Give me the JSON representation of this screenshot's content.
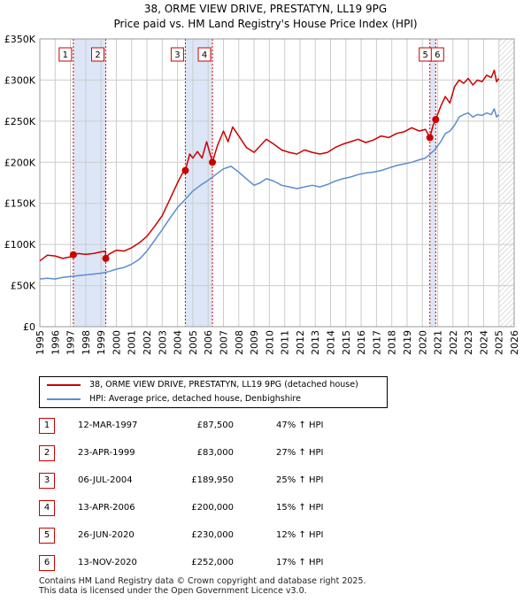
{
  "title_line1": "38, ORME VIEW DRIVE, PRESTATYN, LL19 9PG",
  "title_line2": "Price paid vs. HM Land Registry's House Price Index (HPI)",
  "colors": {
    "property": "#cc0000",
    "hpi": "#5b8ecc",
    "shade": "#dce6f7",
    "marker": "#cc0000",
    "grid": "#cccccc"
  },
  "legend": {
    "property_label": "38, ORME VIEW DRIVE, PRESTATYN, LL19 9PG (detached house)",
    "hpi_label": "HPI: Average price, detached house, Denbighshire"
  },
  "sales": [
    {
      "num": "1",
      "date": "12-MAR-1997",
      "price": "£87,500",
      "hpi": "47% ↑ HPI"
    },
    {
      "num": "2",
      "date": "23-APR-1999",
      "price": "£83,000",
      "hpi": "27% ↑ HPI"
    },
    {
      "num": "3",
      "date": "06-JUL-2004",
      "price": "£189,950",
      "hpi": "25% ↑ HPI"
    },
    {
      "num": "4",
      "date": "13-APR-2006",
      "price": "£200,000",
      "hpi": "15% ↑ HPI"
    },
    {
      "num": "5",
      "date": "26-JUN-2020",
      "price": "£230,000",
      "hpi": "12% ↑ HPI"
    },
    {
      "num": "6",
      "date": "13-NOV-2020",
      "price": "£252,000",
      "hpi": "17% ↑ HPI"
    }
  ],
  "footer_line1": "Contains HM Land Registry data © Crown copyright and database right 2025.",
  "footer_line2": "This data is licensed under the Open Government Licence v3.0.",
  "chart_data": {
    "type": "line",
    "title": "38, ORME VIEW DRIVE, PRESTATYN, LL19 9PG — Price paid vs. HM Land Registry's House Price Index (HPI)",
    "xlabel": "",
    "ylabel": "",
    "xlim": [
      1995,
      2026
    ],
    "ylim": [
      0,
      350000
    ],
    "y_ticks": [
      0,
      50000,
      100000,
      150000,
      200000,
      250000,
      300000,
      350000
    ],
    "y_tick_labels": [
      "£0",
      "£50K",
      "£100K",
      "£150K",
      "£200K",
      "£250K",
      "£300K",
      "£350K"
    ],
    "x_ticks": [
      1995,
      1996,
      1997,
      1998,
      1999,
      2000,
      2001,
      2002,
      2003,
      2004,
      2005,
      2006,
      2007,
      2008,
      2009,
      2010,
      2011,
      2012,
      2013,
      2014,
      2015,
      2016,
      2017,
      2018,
      2019,
      2020,
      2021,
      2022,
      2023,
      2024,
      2025,
      2026
    ],
    "x_tick_labels": [
      "1995",
      "1996",
      "1997",
      "1998",
      "1999",
      "2000",
      "2001",
      "2002",
      "2003",
      "2004",
      "2005",
      "2006",
      "2007",
      "2008",
      "2009",
      "2010",
      "2011",
      "2012",
      "2013",
      "2014",
      "2015",
      "2016",
      "2017",
      "2018",
      "2019",
      "2020",
      "2021",
      "2022",
      "2023",
      "2024",
      "2025",
      "2026"
    ],
    "grid": true,
    "legend_position": "below",
    "future_data_start": 2025.0,
    "shaded_periods": [
      [
        1997.19,
        1999.31
      ],
      [
        2004.51,
        2006.28
      ],
      [
        2020.49,
        2020.87
      ]
    ],
    "sale_markers": [
      {
        "label": "1",
        "x": 1997.19,
        "y": 87500
      },
      {
        "label": "2",
        "x": 1999.31,
        "y": 83000
      },
      {
        "label": "3",
        "x": 2004.51,
        "y": 189950
      },
      {
        "label": "4",
        "x": 2006.28,
        "y": 200000
      },
      {
        "label": "5",
        "x": 2020.49,
        "y": 230000
      },
      {
        "label": "6",
        "x": 2020.87,
        "y": 252000
      }
    ],
    "series": [
      {
        "name": "38, ORME VIEW DRIVE, PRESTATYN, LL19 9PG (detached house)",
        "x": [
          1995.0,
          1995.5,
          1996.0,
          1996.5,
          1997.0,
          1997.19,
          1997.5,
          1998.0,
          1998.5,
          1999.0,
          1999.3,
          1999.31,
          1999.5,
          2000.0,
          2000.5,
          2001.0,
          2001.5,
          2002.0,
          2002.5,
          2003.0,
          2003.5,
          2004.0,
          2004.3,
          2004.51,
          2004.8,
          2005.0,
          2005.3,
          2005.6,
          2005.9,
          2006.1,
          2006.28,
          2006.6,
          2007.0,
          2007.3,
          2007.6,
          2008.0,
          2008.5,
          2009.0,
          2009.4,
          2009.8,
          2010.3,
          2010.8,
          2011.3,
          2011.8,
          2012.3,
          2012.8,
          2013.3,
          2013.8,
          2014.3,
          2014.8,
          2015.3,
          2015.8,
          2016.3,
          2016.8,
          2017.3,
          2017.8,
          2018.3,
          2018.8,
          2019.3,
          2019.8,
          2020.2,
          2020.49,
          2020.7,
          2020.87,
          2021.2,
          2021.5,
          2021.8,
          2022.1,
          2022.4,
          2022.7,
          2023.0,
          2023.3,
          2023.6,
          2023.9,
          2024.2,
          2024.5,
          2024.7,
          2024.85,
          2025.0
        ],
        "values": [
          80000,
          87000,
          86000,
          83000,
          85000,
          87500,
          89000,
          88000,
          89000,
          91000,
          92000,
          83000,
          88000,
          93000,
          92000,
          96000,
          102000,
          110000,
          122000,
          135000,
          155000,
          175000,
          186000,
          189950,
          210000,
          205000,
          213000,
          205000,
          225000,
          212000,
          200000,
          220000,
          238000,
          225000,
          243000,
          232000,
          218000,
          212000,
          220000,
          228000,
          222000,
          215000,
          212000,
          210000,
          215000,
          212000,
          210000,
          212000,
          218000,
          222000,
          225000,
          228000,
          224000,
          227000,
          232000,
          230000,
          235000,
          237000,
          242000,
          238000,
          240000,
          230000,
          245000,
          252000,
          268000,
          280000,
          272000,
          292000,
          300000,
          296000,
          302000,
          294000,
          300000,
          298000,
          306000,
          303000,
          312000,
          298000,
          302000
        ]
      },
      {
        "name": "HPI: Average price, detached house, Denbighshire",
        "x": [
          1995.0,
          1995.5,
          1996.0,
          1996.5,
          1997.0,
          1997.5,
          1998.0,
          1998.5,
          1999.0,
          1999.5,
          2000.0,
          2000.5,
          2001.0,
          2001.5,
          2002.0,
          2002.5,
          2003.0,
          2003.5,
          2004.0,
          2004.5,
          2005.0,
          2005.5,
          2006.0,
          2006.5,
          2007.0,
          2007.5,
          2008.0,
          2008.5,
          2009.0,
          2009.4,
          2009.8,
          2010.3,
          2010.8,
          2011.3,
          2011.8,
          2012.3,
          2012.8,
          2013.3,
          2013.8,
          2014.3,
          2014.8,
          2015.3,
          2015.8,
          2016.3,
          2016.8,
          2017.3,
          2017.8,
          2018.3,
          2018.8,
          2019.3,
          2019.8,
          2020.2,
          2020.5,
          2020.8,
          2021.2,
          2021.5,
          2021.8,
          2022.1,
          2022.4,
          2022.7,
          2023.0,
          2023.3,
          2023.6,
          2023.9,
          2024.2,
          2024.5,
          2024.7,
          2024.85,
          2025.0
        ],
        "values": [
          58000,
          59000,
          58000,
          60000,
          61000,
          62000,
          63000,
          64000,
          65000,
          67000,
          70000,
          72000,
          76000,
          82000,
          92000,
          105000,
          118000,
          132000,
          145000,
          155000,
          165000,
          172000,
          178000,
          185000,
          192000,
          195000,
          188000,
          180000,
          172000,
          175000,
          180000,
          177000,
          172000,
          170000,
          168000,
          170000,
          172000,
          170000,
          173000,
          177000,
          180000,
          182000,
          185000,
          187000,
          188000,
          190000,
          193000,
          196000,
          198000,
          200000,
          203000,
          205000,
          210000,
          215000,
          225000,
          235000,
          238000,
          245000,
          255000,
          258000,
          260000,
          255000,
          258000,
          257000,
          260000,
          258000,
          265000,
          255000,
          258000
        ]
      }
    ]
  }
}
